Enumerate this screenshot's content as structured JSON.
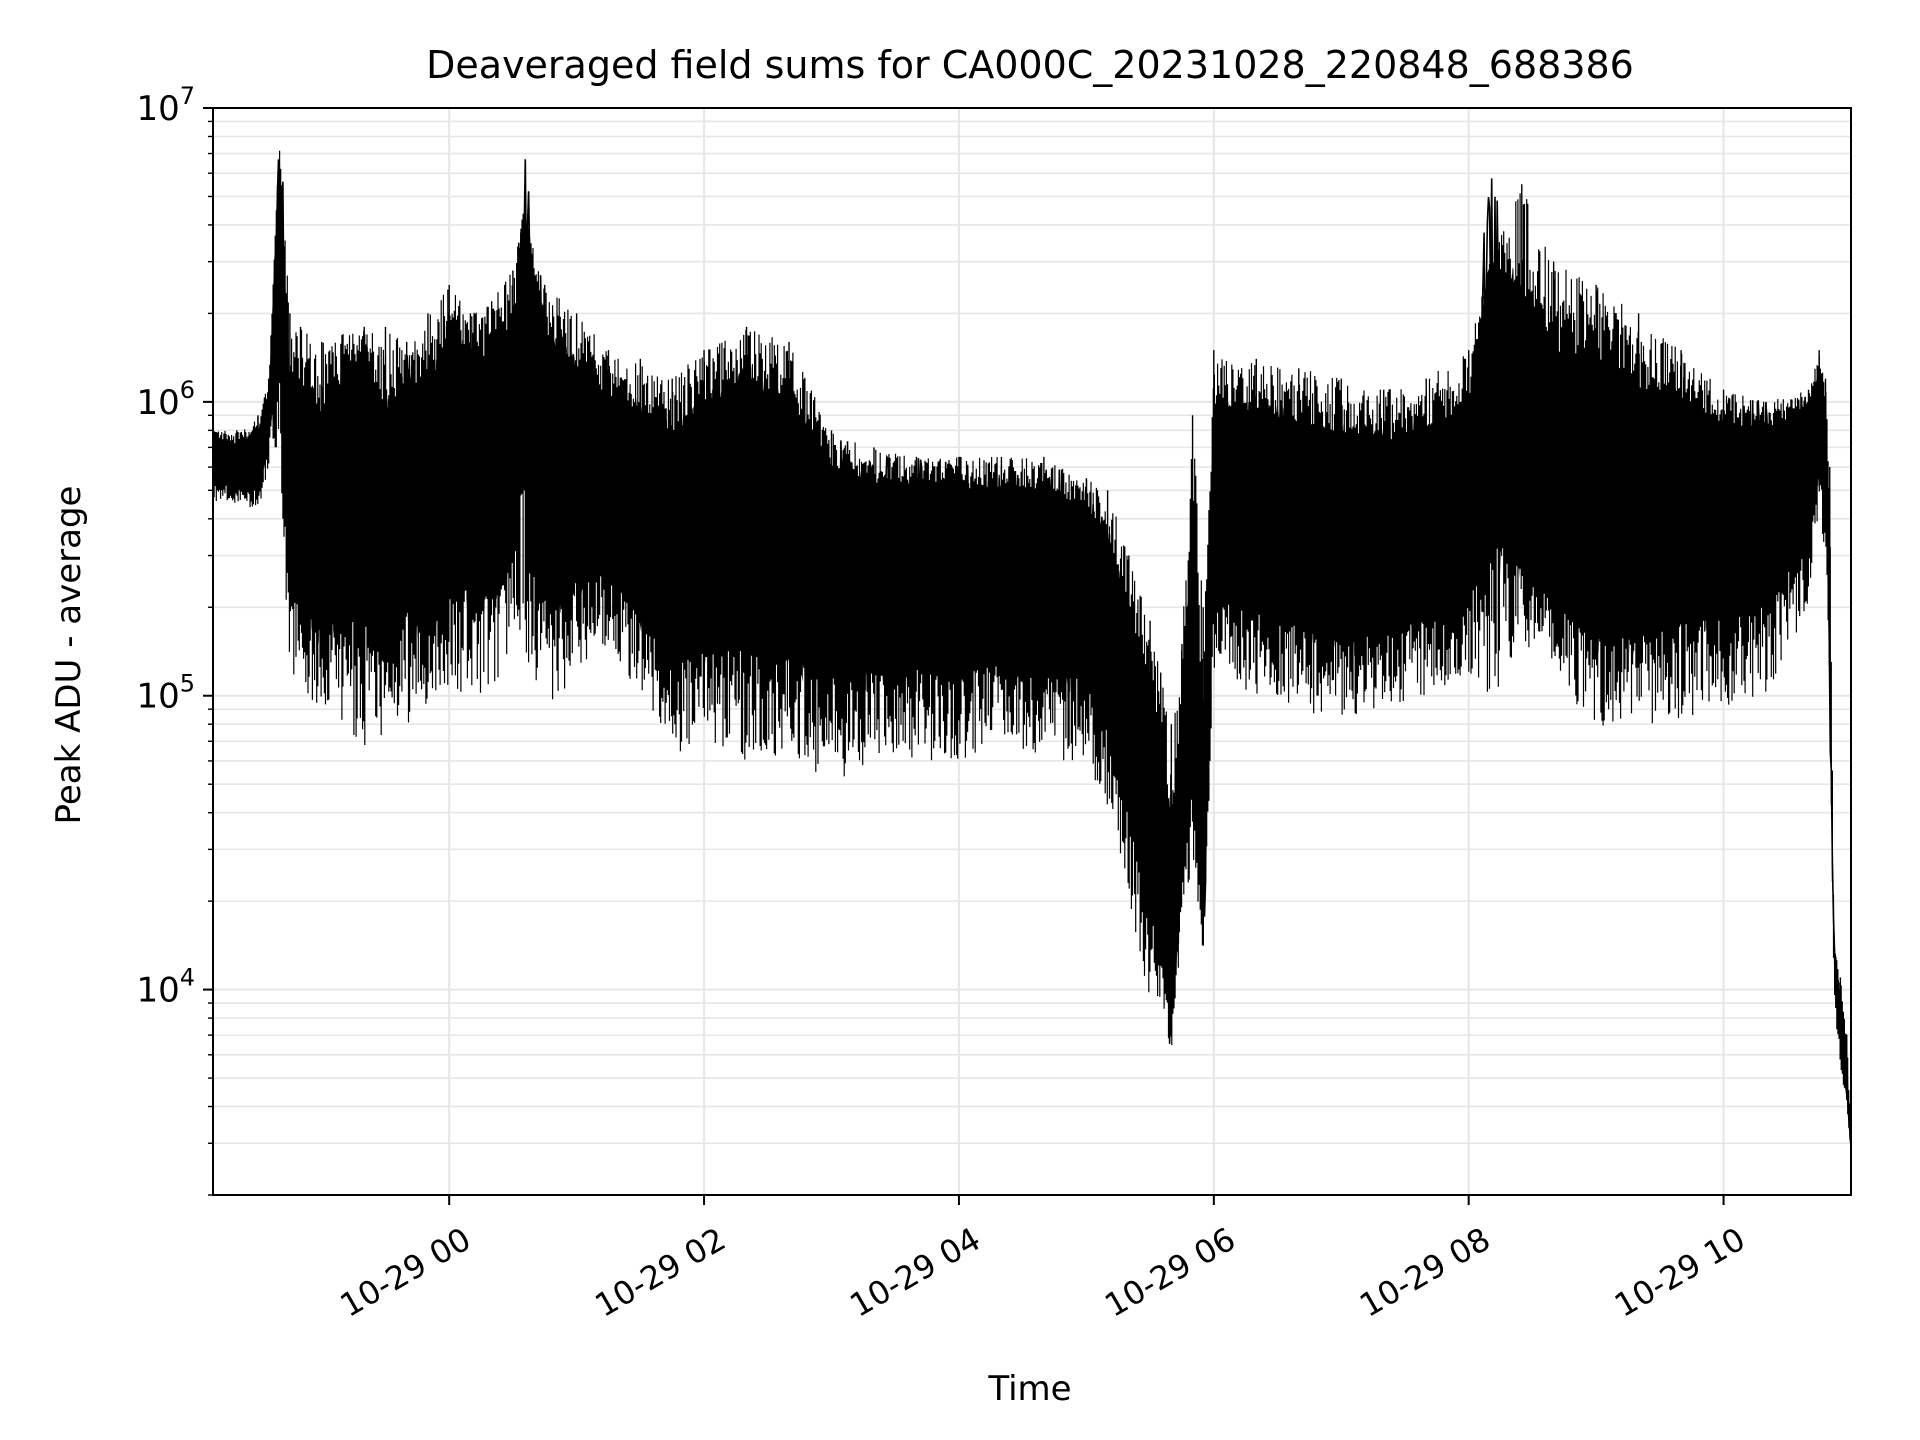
{
  "chart_data": {
    "type": "line",
    "title": "Deaveraged field sums for CA000C_20231028_220848_688386",
    "xlabel": "Time",
    "ylabel": "Peak ADU - average",
    "x_range": [
      "2023-10-28T22:08:48",
      "2023-10-29T11:00:00"
    ],
    "ylim": [
      2000,
      10000000
    ],
    "yscale": "log",
    "grid": true,
    "grid_minor_y": true,
    "x_ticks": [
      {
        "value": "2023-10-29T00:00",
        "label": "10-29 00"
      },
      {
        "value": "2023-10-29T02:00",
        "label": "10-29 02"
      },
      {
        "value": "2023-10-29T04:00",
        "label": "10-29 04"
      },
      {
        "value": "2023-10-29T06:00",
        "label": "10-29 06"
      },
      {
        "value": "2023-10-29T08:00",
        "label": "10-29 08"
      },
      {
        "value": "2023-10-29T10:00",
        "label": "10-29 10"
      }
    ],
    "y_ticks": [
      {
        "value": 10000,
        "base": "10",
        "exp": "4"
      },
      {
        "value": 100000,
        "base": "10",
        "exp": "5"
      },
      {
        "value": 1000000,
        "base": "10",
        "exp": "6"
      },
      {
        "value": 10000000,
        "base": "10",
        "exp": "7"
      }
    ],
    "line_color": "#000000",
    "grid_color": "#e6e6e6",
    "series": [
      {
        "x": [
          "2023-10-28T22:08:48",
          "2023-10-28T22:20",
          "2023-10-28T22:30",
          "2023-10-28T22:35",
          "2023-10-28T22:40",
          "2023-10-28T22:45",
          "2023-10-28T22:50",
          "2023-10-28T23:00",
          "2023-10-28T23:10",
          "2023-10-28T23:20",
          "2023-10-28T23:30",
          "2023-10-28T23:40",
          "2023-10-28T23:50",
          "2023-10-29T00:00",
          "2023-10-29T00:10",
          "2023-10-29T00:20",
          "2023-10-29T00:30",
          "2023-10-29T00:35",
          "2023-10-29T00:45",
          "2023-10-29T01:00",
          "2023-10-29T01:15",
          "2023-10-29T01:30",
          "2023-10-29T01:45",
          "2023-10-29T02:00",
          "2023-10-29T02:20",
          "2023-10-29T02:40",
          "2023-10-29T03:00",
          "2023-10-29T03:20",
          "2023-10-29T03:40",
          "2023-10-29T04:00",
          "2023-10-29T04:20",
          "2023-10-29T04:40",
          "2023-10-29T05:00",
          "2023-10-29T05:10",
          "2023-10-29T05:20",
          "2023-10-29T05:30",
          "2023-10-29T05:35",
          "2023-10-29T05:40",
          "2023-10-29T05:45",
          "2023-10-29T05:50",
          "2023-10-29T05:55",
          "2023-10-29T06:00",
          "2023-10-29T06:20",
          "2023-10-29T06:40",
          "2023-10-29T07:00",
          "2023-10-29T07:20",
          "2023-10-29T07:40",
          "2023-10-29T08:00",
          "2023-10-29T08:10",
          "2023-10-29T08:25",
          "2023-10-29T08:40",
          "2023-10-29T09:00",
          "2023-10-29T09:20",
          "2023-10-29T09:40",
          "2023-10-29T10:00",
          "2023-10-29T10:20",
          "2023-10-29T10:40",
          "2023-10-29T10:45",
          "2023-10-29T10:48",
          "2023-10-29T10:50",
          "2023-10-29T10:52",
          "2023-10-29T10:55",
          "2023-10-29T10:58",
          "2023-10-29T11:00"
        ],
        "y": [
          700000,
          600000,
          650000,
          900000,
          7500000,
          500000,
          600000,
          400000,
          700000,
          1000000,
          300000,
          800000,
          400000,
          1000000,
          900000,
          700000,
          800000,
          4500000,
          900000,
          700000,
          600000,
          500000,
          400000,
          500000,
          600000,
          450000,
          400000,
          350000,
          380000,
          350000,
          350000,
          350000,
          300000,
          200000,
          100000,
          50000,
          30000,
          10000,
          40000,
          150000,
          20000,
          500000,
          500000,
          450000,
          400000,
          400000,
          450000,
          500000,
          3000000,
          700000,
          500000,
          550000,
          450000,
          600000,
          550000,
          600000,
          700000,
          1000000,
          800000,
          120000,
          14000,
          8000,
          5000,
          3000
        ],
        "envelope_lo": [
          450000,
          450000,
          420000,
          600000,
          600000,
          120000,
          100000,
          90000,
          80000,
          60000,
          70000,
          80000,
          90000,
          100000,
          90000,
          100000,
          150000,
          150000,
          80000,
          120000,
          150000,
          100000,
          60000,
          70000,
          60000,
          60000,
          50000,
          60000,
          60000,
          60000,
          70000,
          60000,
          60000,
          40000,
          20000,
          9000,
          8000,
          6000,
          15000,
          25000,
          13000,
          120000,
          100000,
          90000,
          80000,
          90000,
          100000,
          120000,
          90000,
          150000,
          130000,
          70000,
          80000,
          80000,
          90000,
          100000,
          200000,
          400000,
          300000,
          100000,
          9000,
          5500,
          4000,
          2800
        ],
        "envelope_hi": [
          800000,
          800000,
          900000,
          1200000,
          7500000,
          2000000,
          1800000,
          1600000,
          1700000,
          1800000,
          1800000,
          1600000,
          2000000,
          2500000,
          2000000,
          2200000,
          2800000,
          4500000,
          2500000,
          2000000,
          1500000,
          1400000,
          1200000,
          1500000,
          1800000,
          1600000,
          800000,
          700000,
          650000,
          650000,
          650000,
          650000,
          550000,
          500000,
          300000,
          180000,
          120000,
          80000,
          150000,
          900000,
          200000,
          1500000,
          1400000,
          1300000,
          1200000,
          1100000,
          1200000,
          1500000,
          3000000,
          5500000,
          3000000,
          2500000,
          2000000,
          1500000,
          1100000,
          1000000,
          1100000,
          1500000,
          1200000,
          600000,
          14000,
          11000,
          7000,
          3500
        ]
      }
    ]
  }
}
